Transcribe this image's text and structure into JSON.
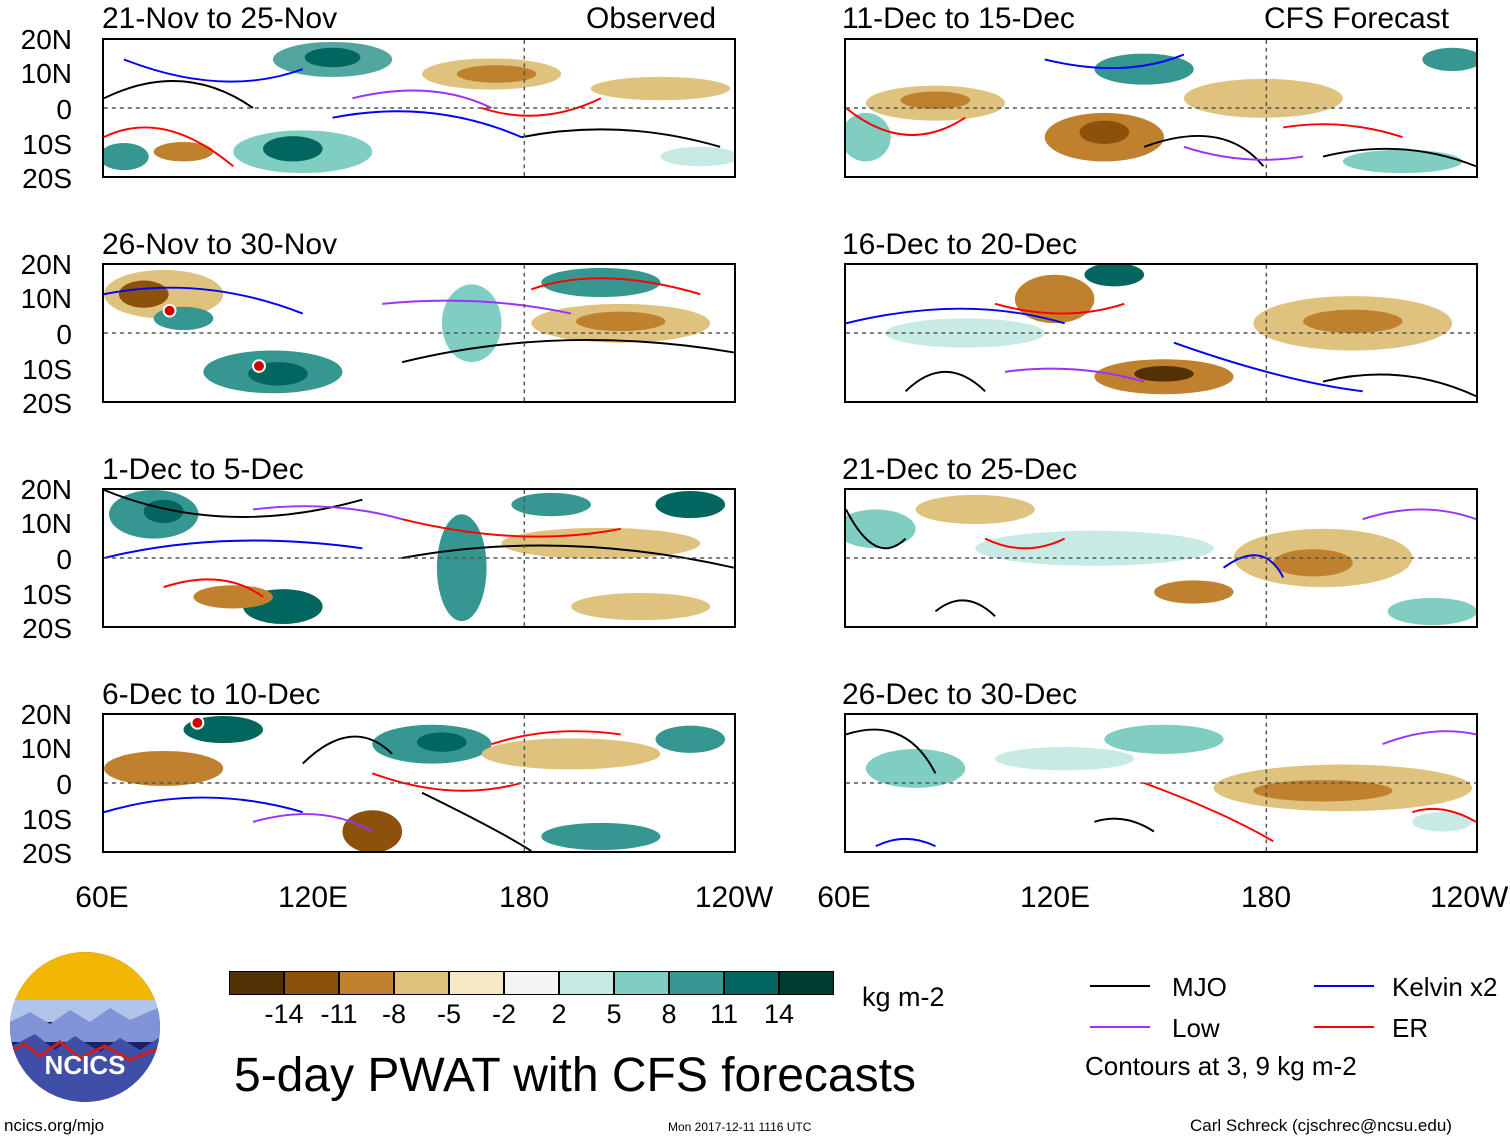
{
  "header": {
    "left_label": "Observed",
    "right_label": "CFS Forecast"
  },
  "panels": {
    "left": [
      {
        "title": "21-Nov to 25-Nov"
      },
      {
        "title": "26-Nov to 30-Nov"
      },
      {
        "title": "1-Dec to 5-Dec"
      },
      {
        "title": "6-Dec to 10-Dec"
      }
    ],
    "right": [
      {
        "title": "11-Dec to 15-Dec"
      },
      {
        "title": "16-Dec to 20-Dec"
      },
      {
        "title": "21-Dec to 25-Dec"
      },
      {
        "title": "26-Dec to 30-Dec"
      }
    ]
  },
  "axes": {
    "lat_labels": [
      "20N",
      "10N",
      "0",
      "10S",
      "20S"
    ],
    "lon_labels": [
      "60E",
      "120E",
      "180",
      "120W"
    ]
  },
  "colorbar": {
    "unit": "kg m-2",
    "ticks": [
      "-14",
      "-11",
      "-8",
      "-5",
      "-2",
      "2",
      "5",
      "8",
      "11",
      "14"
    ],
    "colors": [
      "#543005",
      "#8c510a",
      "#bf812d",
      "#dfc27d",
      "#f6e8c3",
      "#f5f5f5",
      "#c7eae5",
      "#80cdc1",
      "#35978f",
      "#01665e",
      "#003c30"
    ]
  },
  "legend": {
    "items": [
      {
        "label": "MJO",
        "color": "#000000"
      },
      {
        "label": "Kelvin x2",
        "color": "#0000ff"
      },
      {
        "label": "Low",
        "color": "#9933ff"
      },
      {
        "label": "ER",
        "color": "#ff0000"
      }
    ],
    "note": "Contours at 3, 9 kg m-2"
  },
  "title": "5-day PWAT with CFS forecasts",
  "logo_text": "NCICS",
  "footer": {
    "site": "ncics.org/mjo",
    "timestamp": "Mon 2017-12-11 1116 UTC",
    "author": "Carl Schreck (cjschrec@ncsu.edu)"
  }
}
